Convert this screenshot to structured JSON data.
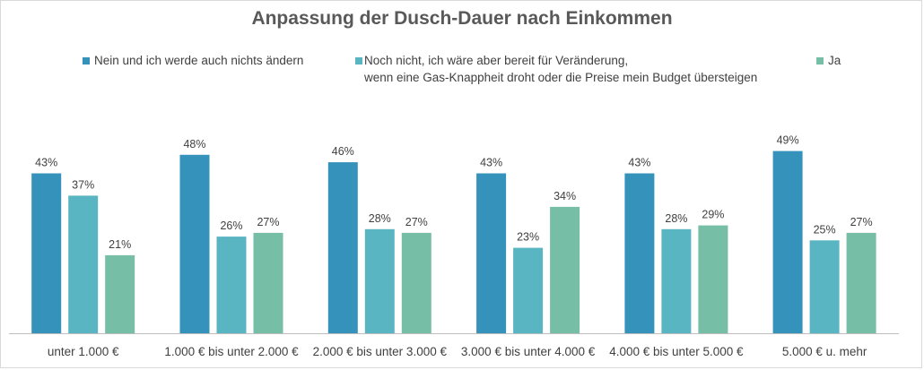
{
  "chart_data": {
    "type": "bar",
    "title": "Anpassung der Dusch-Dauer nach Einkommen",
    "xlabel": "",
    "ylabel": "",
    "ylim": [
      0,
      55
    ],
    "grid": false,
    "legend_position": "top",
    "categories": [
      "unter 1.000 €",
      "1.000 € bis unter 2.000 €",
      "2.000 € bis unter 3.000 €",
      "3.000 € bis unter 4.000 €",
      "4.000 € bis unter 5.000 €",
      "5.000 € u. mehr"
    ],
    "series": [
      {
        "name": "Nein und ich werde auch nichts ändern",
        "color": "#3492bb",
        "values": [
          43,
          48,
          46,
          43,
          43,
          49
        ],
        "labels": [
          "43%",
          "48%",
          "46%",
          "43%",
          "43%",
          "49%"
        ]
      },
      {
        "name": "Noch nicht, ich wäre aber bereit für Veränderung,\nwenn eine Gas-Knappheit droht oder die Preise mein Budget übersteigen",
        "color": "#59b5c2",
        "values": [
          37,
          26,
          28,
          23,
          28,
          25
        ],
        "labels": [
          "37%",
          "26%",
          "28%",
          "23%",
          "28%",
          "25%"
        ]
      },
      {
        "name": "Ja",
        "color": "#76bea5",
        "values": [
          21,
          27,
          27,
          34,
          29,
          27
        ],
        "labels": [
          "21%",
          "27%",
          "27%",
          "34%",
          "29%",
          "27%"
        ]
      }
    ]
  }
}
